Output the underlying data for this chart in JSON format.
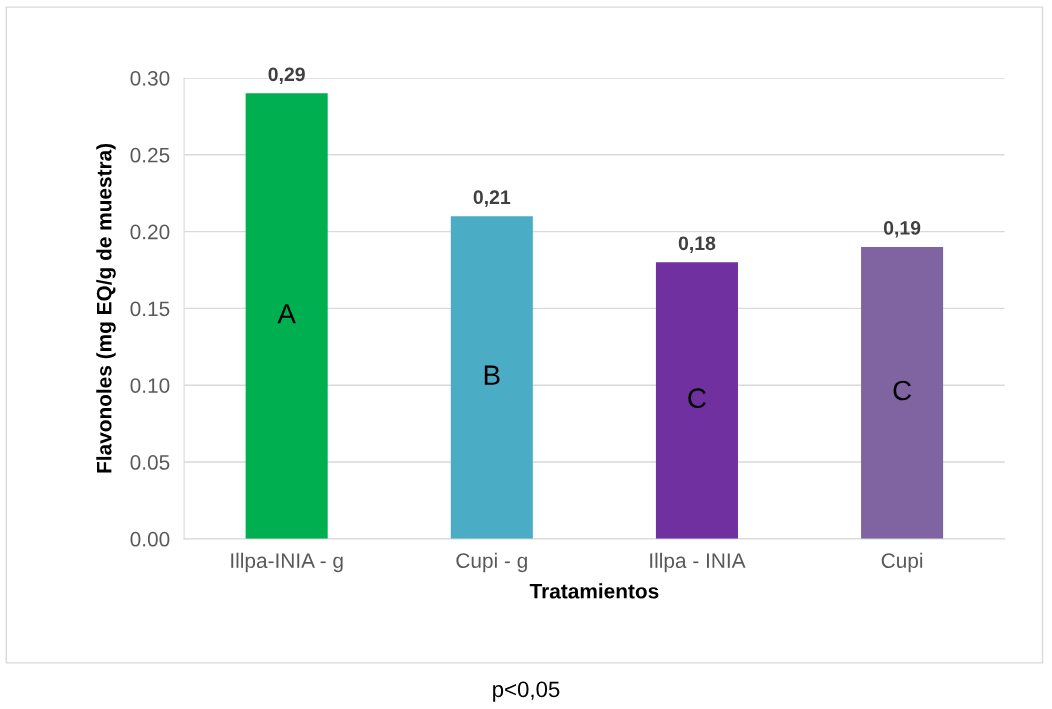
{
  "chart_data": {
    "type": "bar",
    "xlabel": "Tratamientos",
    "ylabel": "Flavonoles (mg EQ/g de muestra)",
    "categories": [
      "Illpa-INIA - g",
      "Cupi - g",
      "Illpa - INIA",
      "Cupi"
    ],
    "values": [
      0.29,
      0.21,
      0.18,
      0.19
    ],
    "colors": [
      "#00b050",
      "#4bacc6",
      "#7030a0",
      "#8064a2"
    ],
    "value_labels": [
      "0,29",
      "0,21",
      "0,18",
      "0,19"
    ],
    "ylim": [
      0,
      0.3
    ],
    "yticks": [
      {
        "value": 0,
        "label": "0.00"
      },
      {
        "value": 0.05,
        "label": "0.05"
      },
      {
        "value": 0.1,
        "label": "0.10"
      },
      {
        "value": 0.15,
        "label": "0.15"
      },
      {
        "value": 0.2,
        "label": "0.20"
      },
      {
        "value": 0.25,
        "label": "0.25"
      },
      {
        "value": 0.3,
        "label": "0.30"
      }
    ],
    "grid": "y",
    "annotations": [
      "A",
      "B",
      "C",
      "C",
      "p<0,05"
    ]
  }
}
